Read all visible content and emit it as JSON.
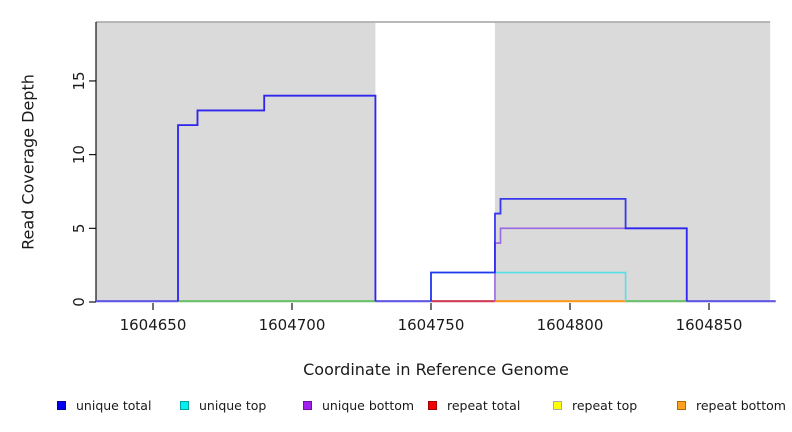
{
  "axes": {
    "x_label": "Coordinate in Reference Genome",
    "y_label": "Read Coverage Depth"
  },
  "chart_data": {
    "type": "step-line",
    "title": "",
    "xlabel": "Coordinate in Reference Genome",
    "ylabel": "Read Coverage Depth",
    "xlim": [
      1604629.5,
      1604874
    ],
    "ylim": [
      0,
      19
    ],
    "grid": false,
    "legend_position": "bottom",
    "x_ticks": [
      {
        "v": 1604650,
        "label": "1604650"
      },
      {
        "v": 1604700,
        "label": "1604700"
      },
      {
        "v": 1604750,
        "label": "1604750"
      },
      {
        "v": 1604800,
        "label": "1604800"
      },
      {
        "v": 1604850,
        "label": "1604850"
      }
    ],
    "y_ticks": [
      {
        "v": 0,
        "label": "0"
      },
      {
        "v": 5,
        "label": "5"
      },
      {
        "v": 10,
        "label": "10"
      },
      {
        "v": 15,
        "label": "15"
      }
    ],
    "shaded_regions": {
      "fill": "#dadada",
      "top_edge_color": "#a2a2a2",
      "ranges": [
        [
          1604629.5,
          1604730
        ],
        [
          1604773,
          1604872
        ]
      ]
    },
    "series": [
      {
        "name": "unique top",
        "line_color": "#55dfe8",
        "steps": [
          [
            1604629.5,
            1604750,
            0
          ],
          [
            1604750,
            1604820,
            2
          ],
          [
            1604820,
            1604874,
            0
          ]
        ]
      },
      {
        "name": "unique bottom",
        "line_color": "#9a68e0",
        "steps": [
          [
            1604629.5,
            1604659,
            0
          ],
          [
            1604659,
            1604666,
            12
          ],
          [
            1604666,
            1604690,
            13
          ],
          [
            1604690,
            1604730,
            14
          ],
          [
            1604730,
            1604773,
            0
          ],
          [
            1604773,
            1604775,
            4
          ],
          [
            1604775,
            1604842,
            5
          ],
          [
            1604842,
            1604874,
            0
          ]
        ]
      },
      {
        "name": "unique total",
        "line_color": "#1b1bf0",
        "steps": [
          [
            1604629.5,
            1604659,
            0
          ],
          [
            1604659,
            1604666,
            12
          ],
          [
            1604666,
            1604690,
            13
          ],
          [
            1604690,
            1604730,
            14
          ],
          [
            1604730,
            1604750,
            0
          ],
          [
            1604750,
            1604773,
            2
          ],
          [
            1604773,
            1604775,
            6
          ],
          [
            1604775,
            1604820,
            7
          ],
          [
            1604820,
            1604842,
            5
          ],
          [
            1604842,
            1604874,
            0
          ]
        ]
      },
      {
        "name": "repeat total",
        "line_color": "#d23b55",
        "steps": [
          [
            1604629.5,
            1604874,
            0
          ]
        ]
      },
      {
        "name": "repeat top",
        "line_color": "#e8e84a",
        "steps": [
          [
            1604629.5,
            1604874,
            0
          ]
        ]
      },
      {
        "name": "repeat bottom",
        "line_color": "#ff9a1c",
        "steps": [
          [
            1604629.5,
            1604874,
            0
          ]
        ]
      }
    ],
    "baseline_render_segments": [
      {
        "from": 1604629.5,
        "to": 1604659,
        "color": "#6257e2"
      },
      {
        "from": 1604659,
        "to": 1604730,
        "color": "#69c06b"
      },
      {
        "from": 1604730,
        "to": 1604750,
        "color": "#6257e2"
      },
      {
        "from": 1604750,
        "to": 1604773,
        "color": "#d23b55"
      },
      {
        "from": 1604773,
        "to": 1604820,
        "color": "#ff9a1c"
      },
      {
        "from": 1604820,
        "to": 1604842,
        "color": "#69c06b"
      },
      {
        "from": 1604842,
        "to": 1604874,
        "color": "#6257e2"
      }
    ]
  },
  "legend": {
    "items": [
      {
        "label": "unique total",
        "color": "#0000f0",
        "border": "#0000a0"
      },
      {
        "label": "unique top",
        "color": "#00f0f0",
        "border": "#00a3a3"
      },
      {
        "label": "unique bottom",
        "color": "#a020f0",
        "border": "#6e0fa8"
      },
      {
        "label": "repeat total",
        "color": "#f00000",
        "border": "#a00000"
      },
      {
        "label": "repeat top",
        "color": "#ffff00",
        "border": "#ababab"
      },
      {
        "label": "repeat bottom",
        "color": "#ffa022",
        "border": "#b36b00"
      }
    ]
  }
}
